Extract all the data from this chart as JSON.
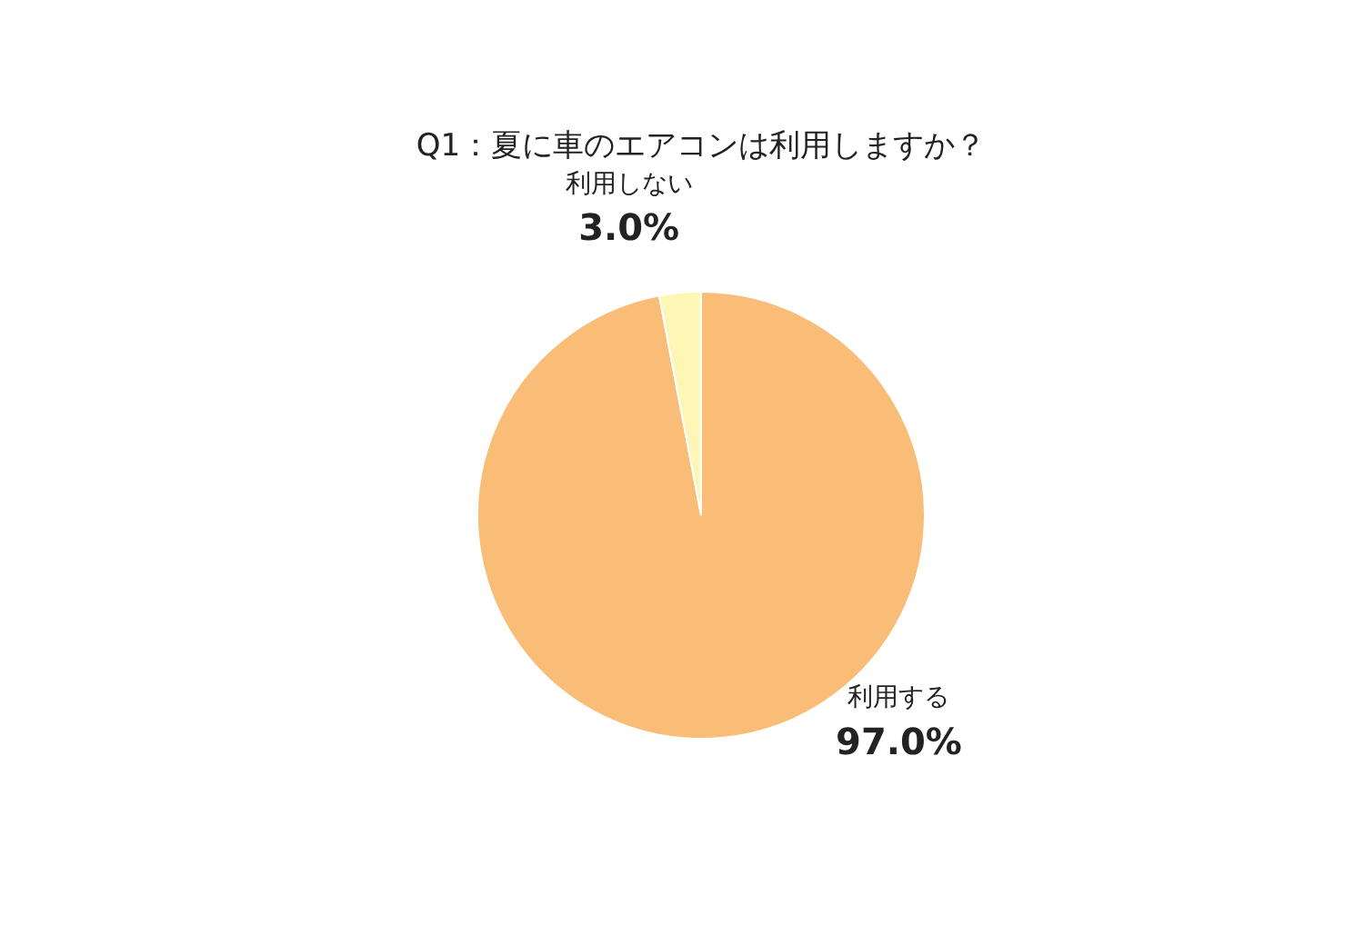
{
  "chart_data": {
    "type": "pie",
    "title": "Q1：夏に車のエアコンは利用しますか？",
    "categories": [
      "利用する",
      "利用しない"
    ],
    "values": [
      97.0,
      3.0
    ],
    "value_labels": [
      "97.0%",
      "3.0%"
    ],
    "colors": [
      "#f9bd78",
      "#fdf6b4"
    ]
  }
}
